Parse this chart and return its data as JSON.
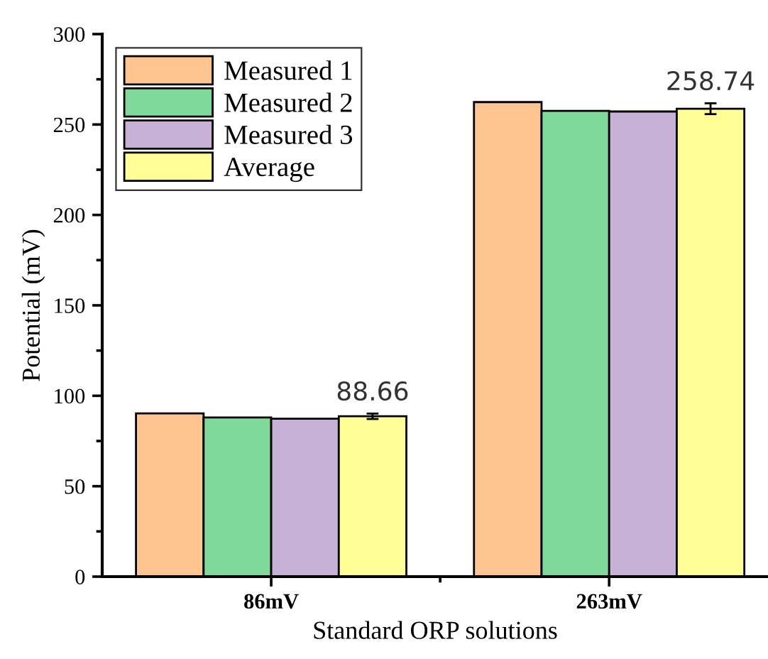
{
  "chart_data": {
    "type": "bar",
    "xlabel": "Standard ORP solutions",
    "ylabel": "Potential (mV)",
    "categories": [
      "86mV",
      "263mV"
    ],
    "series": [
      {
        "name": "Measured 1",
        "color": "#fec591",
        "values": [
          90.3,
          262.4
        ]
      },
      {
        "name": "Measured 2",
        "color": "#7fd99b",
        "values": [
          88.0,
          257.5
        ]
      },
      {
        "name": "Measured 3",
        "color": "#c8b1d6",
        "values": [
          87.3,
          257.2
        ]
      },
      {
        "name": "Average",
        "color": "#fffe97",
        "values": [
          88.66,
          258.74
        ],
        "errors": [
          1.5,
          3
        ],
        "value_labels": [
          "88.66",
          "258.74"
        ]
      }
    ],
    "ylim": [
      0,
      300
    ],
    "yticks": [
      0,
      50,
      100,
      150,
      200,
      250,
      300
    ],
    "grid": false,
    "legend": "top left"
  }
}
